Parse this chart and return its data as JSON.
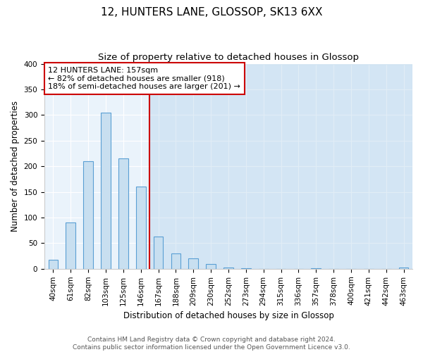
{
  "title": "12, HUNTERS LANE, GLOSSOP, SK13 6XX",
  "subtitle": "Size of property relative to detached houses in Glossop",
  "xlabel": "Distribution of detached houses by size in Glossop",
  "ylabel": "Number of detached properties",
  "bin_labels": [
    "40sqm",
    "61sqm",
    "82sqm",
    "103sqm",
    "125sqm",
    "146sqm",
    "167sqm",
    "188sqm",
    "209sqm",
    "230sqm",
    "252sqm",
    "273sqm",
    "294sqm",
    "315sqm",
    "336sqm",
    "357sqm",
    "378sqm",
    "400sqm",
    "421sqm",
    "442sqm",
    "463sqm"
  ],
  "bar_heights": [
    17,
    90,
    210,
    305,
    215,
    160,
    63,
    30,
    20,
    10,
    3,
    1,
    0,
    0,
    0,
    1,
    0,
    0,
    0,
    0,
    2
  ],
  "bar_color": "#c8dff0",
  "bar_edge_color": "#5a9fd4",
  "highlight_color": "#ddeef8",
  "vline_x_idx": 5.5,
  "vline_color": "#cc0000",
  "annotation_lines": [
    "12 HUNTERS LANE: 157sqm",
    "← 82% of detached houses are smaller (918)",
    "18% of semi-detached houses are larger (201) →"
  ],
  "box_edge_color": "#cc0000",
  "plot_bg_color": "#eaf3fb",
  "ylim": [
    0,
    400
  ],
  "yticks": [
    0,
    50,
    100,
    150,
    200,
    250,
    300,
    350,
    400
  ],
  "footer_line1": "Contains HM Land Registry data © Crown copyright and database right 2024.",
  "footer_line2": "Contains public sector information licensed under the Open Government Licence v3.0.",
  "title_fontsize": 11,
  "subtitle_fontsize": 9.5,
  "label_fontsize": 8.5,
  "tick_fontsize": 7.5,
  "annotation_fontsize": 8,
  "footer_fontsize": 6.5
}
